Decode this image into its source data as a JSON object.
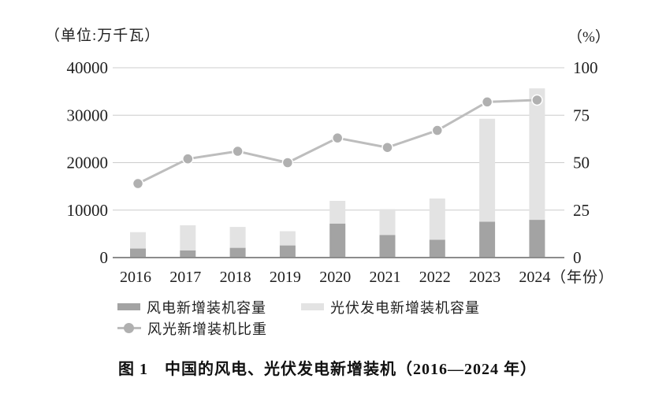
{
  "labels": {
    "left_unit": "（单位:万千瓦）",
    "right_unit": "（%）",
    "x_suffix": "（年份）",
    "caption": "图 1　中国的风电、光伏发电新增装机（2016—2024 年）"
  },
  "legend": {
    "items": [
      {
        "label": "风电新增装机容量",
        "swatch": "wind_bar"
      },
      {
        "label": "光伏发电新增装机容量",
        "swatch": "solar_bar"
      },
      {
        "label": "风光新增装机比重",
        "swatch": "line_marker"
      }
    ]
  },
  "colors": {
    "background": "#ffffff",
    "grid": "#cccccc",
    "axis": "#8c8c8c",
    "text": "#1f1f1f",
    "wind_bar": "#a3a3a3",
    "solar_bar": "#e3e3e3",
    "line": "#bdbdbd",
    "marker": "#b0b0b0"
  },
  "chart_data": {
    "type": "bar",
    "subtype": "stacked-bars-with-line",
    "title": "图 1　中国的风电、光伏发电新增装机（2016—2024 年）",
    "categories": [
      "2016",
      "2017",
      "2018",
      "2019",
      "2020",
      "2021",
      "2022",
      "2023",
      "2024"
    ],
    "series": [
      {
        "name": "风电新增装机容量",
        "type": "bar",
        "stack": "total",
        "axis": "left",
        "values": [
          1900,
          1500,
          2050,
          2550,
          7150,
          4750,
          3750,
          7550,
          7950
        ]
      },
      {
        "name": "光伏发电新增装机容量",
        "type": "bar",
        "stack": "total",
        "axis": "left",
        "values": [
          3450,
          5300,
          4400,
          3000,
          4800,
          5450,
          8700,
          21700,
          27700
        ]
      },
      {
        "name": "风光新增装机比重",
        "type": "line",
        "axis": "right",
        "values": [
          39,
          52,
          56,
          50,
          63,
          58,
          67,
          82,
          83
        ]
      }
    ],
    "left_axis": {
      "title": "（单位:万千瓦）",
      "range": [
        0,
        40000
      ],
      "ticks": [
        0,
        10000,
        20000,
        30000,
        40000
      ]
    },
    "right_axis": {
      "title": "（%）",
      "range": [
        0,
        100
      ],
      "ticks": [
        0,
        25,
        50,
        75,
        100
      ]
    },
    "x_axis": {
      "title": "（年份）"
    },
    "grid": true,
    "legend_position": "bottom"
  }
}
